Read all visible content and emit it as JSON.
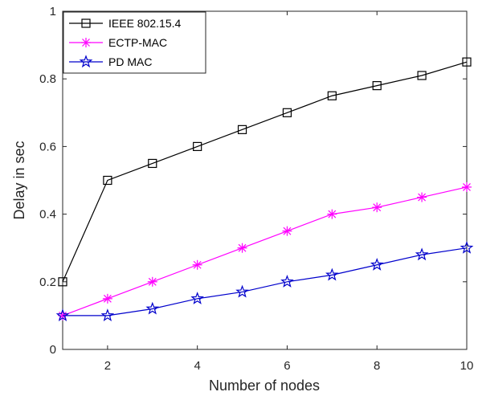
{
  "chart_data": {
    "type": "line",
    "xlabel": "Number of nodes",
    "ylabel": "Delay in sec",
    "xlim": [
      1,
      10
    ],
    "ylim": [
      0,
      1
    ],
    "x_ticks": [
      "2",
      "4",
      "6",
      "8",
      "10"
    ],
    "y_ticks": [
      "0",
      "0.2",
      "0.4",
      "0.6",
      "0.8",
      "1"
    ],
    "grid": false,
    "legend_position": "top-left",
    "x": [
      1,
      2,
      3,
      4,
      5,
      6,
      7,
      8,
      9,
      10
    ],
    "series": [
      {
        "name": "IEEE 802.15.4",
        "color": "#000000",
        "marker": "square",
        "values": [
          0.2,
          0.5,
          0.55,
          0.6,
          0.65,
          0.7,
          0.75,
          0.78,
          0.81,
          0.85
        ]
      },
      {
        "name": "ECTP-MAC",
        "color": "#ff00ff",
        "marker": "asterisk",
        "values": [
          0.1,
          0.15,
          0.2,
          0.25,
          0.3,
          0.35,
          0.4,
          0.42,
          0.45,
          0.48
        ]
      },
      {
        "name": "PD MAC",
        "color": "#0000cc",
        "marker": "star",
        "values": [
          0.1,
          0.1,
          0.12,
          0.15,
          0.17,
          0.2,
          0.22,
          0.25,
          0.28,
          0.3
        ]
      }
    ]
  }
}
